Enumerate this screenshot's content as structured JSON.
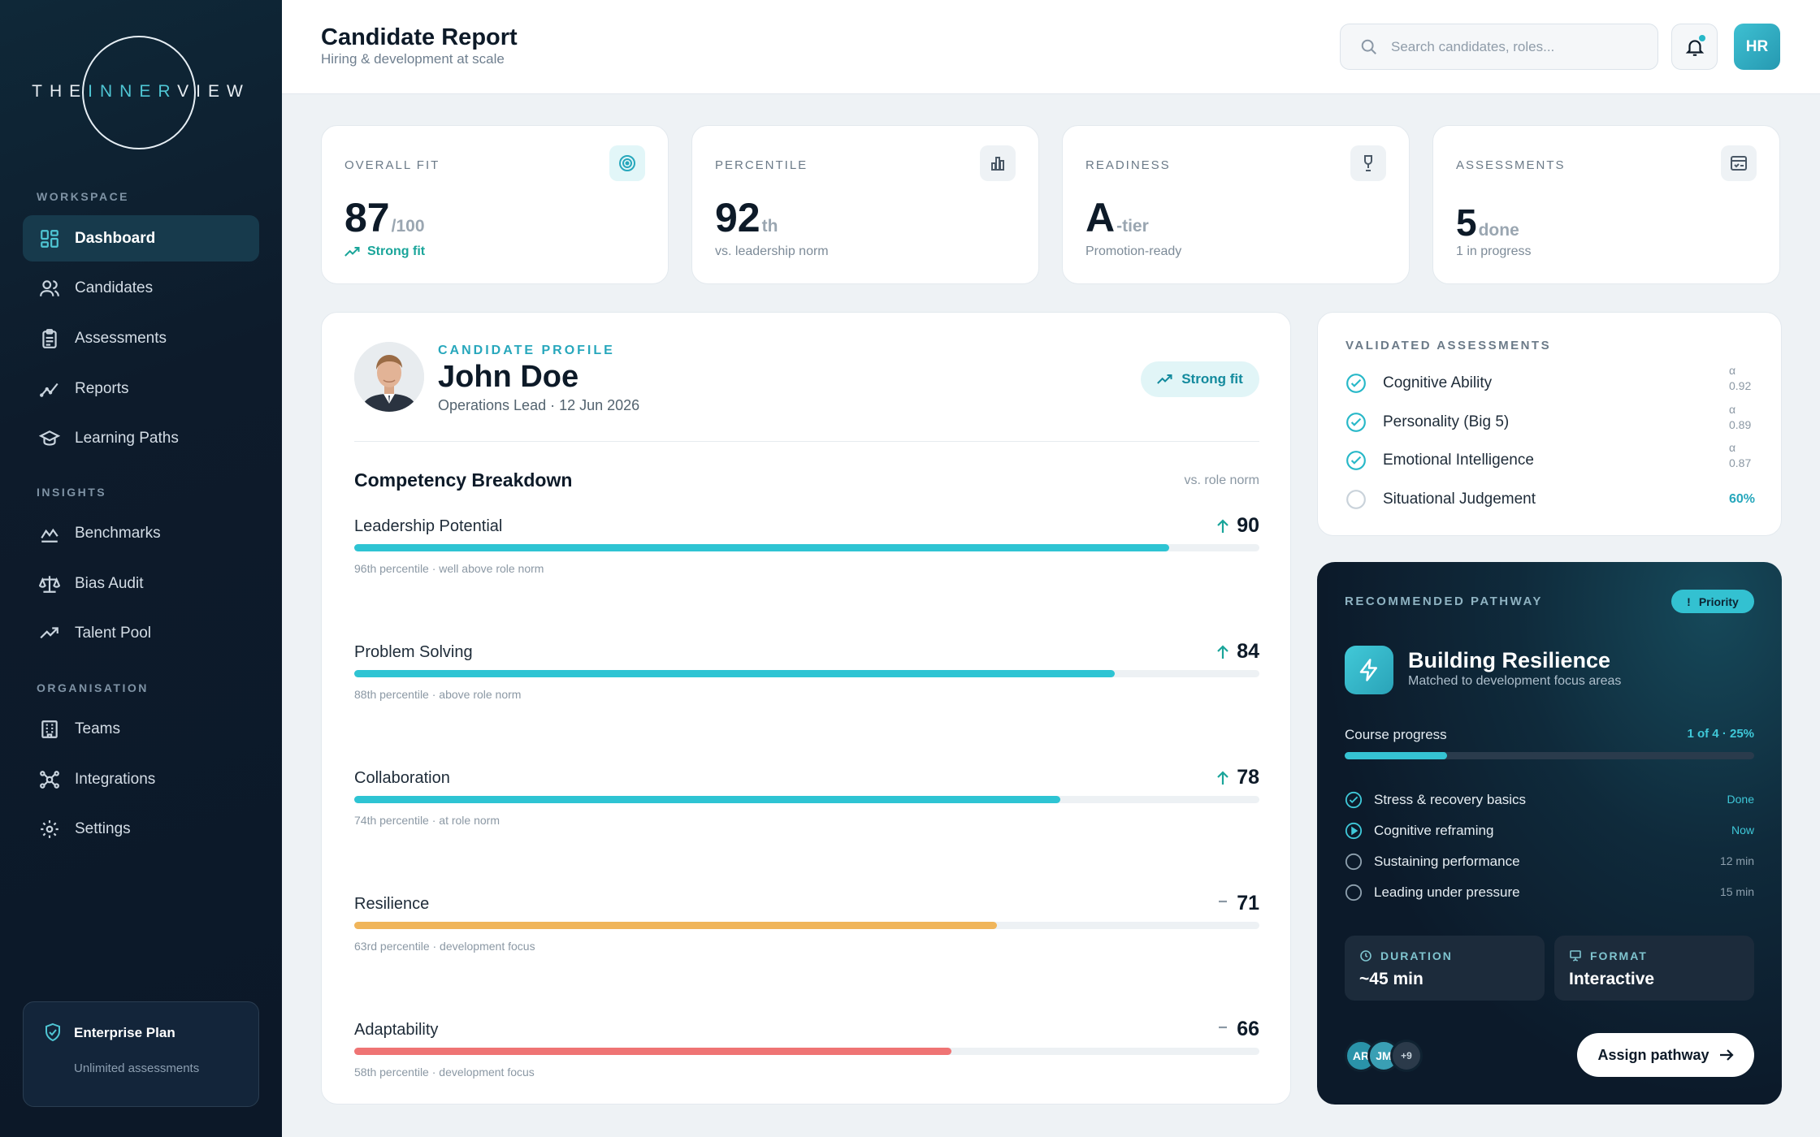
{
  "brand": {
    "logo_left": "THE",
    "logo_mid": "INNER",
    "logo_right": "VIEW"
  },
  "sidebar": {
    "sections": [
      "WORKSPACE",
      "INSIGHTS",
      "ORGANISATION"
    ],
    "items": [
      {
        "label": "Dashboard",
        "icon": "grid-icon",
        "active": true
      },
      {
        "label": "Candidates",
        "icon": "users-icon"
      },
      {
        "label": "Assessments",
        "icon": "clipboard-icon"
      },
      {
        "label": "Reports",
        "icon": "trend-icon"
      },
      {
        "label": "Learning Paths",
        "icon": "graduation-cap-icon"
      },
      {
        "label": "Benchmarks",
        "icon": "benchmark-icon"
      },
      {
        "label": "Bias Audit",
        "icon": "scale-icon"
      },
      {
        "label": "Talent Pool",
        "icon": "trending-up-icon"
      },
      {
        "label": "Teams",
        "icon": "building-icon"
      },
      {
        "label": "Integrations",
        "icon": "network-icon"
      },
      {
        "label": "Settings",
        "icon": "gear-icon"
      }
    ],
    "plan": {
      "title": "Enterprise Plan",
      "subtitle": "Unlimited assessments"
    }
  },
  "header": {
    "title": "Candidate Report",
    "subtitle": "Hiring & development at scale",
    "search_placeholder": "Search candidates, roles...",
    "avatar": "HR"
  },
  "stats": [
    {
      "label": "OVERALL FIT",
      "value": "87",
      "suffix": "/100",
      "footer": "Strong fit",
      "icon": "target-icon"
    },
    {
      "label": "PERCENTILE",
      "value": "92",
      "suffix": "th",
      "footer": "vs. leadership norm",
      "icon": "bar-chart-icon"
    },
    {
      "label": "READINESS",
      "value": "A",
      "suffix": "-tier",
      "footer": "Promotion-ready",
      "icon": "trophy-icon"
    },
    {
      "label": "ASSESSMENTS",
      "value": "5",
      "suffix": "done",
      "footer": "1 in progress",
      "icon": "checklist-icon"
    }
  ],
  "profile": {
    "tag": "CANDIDATE PROFILE",
    "name": "John Doe",
    "meta": "Operations Lead · 12 Jun 2026",
    "fit_badge": "Strong fit",
    "breakdown_title": "Competency Breakdown",
    "breakdown_norm": "vs. role norm",
    "competencies": [
      {
        "name": "Leadership Potential",
        "score": "90",
        "value": 90,
        "trend": "up",
        "color": "#2ec4d3",
        "note": "96th percentile · well above role norm"
      },
      {
        "name": "Problem Solving",
        "score": "84",
        "value": 84,
        "trend": "up",
        "color": "#2ec4d3",
        "note": "88th percentile · above role norm"
      },
      {
        "name": "Collaboration",
        "score": "78",
        "value": 78,
        "trend": "up",
        "color": "#2ec4d3",
        "note": "74th percentile · at role norm"
      },
      {
        "name": "Resilience",
        "score": "71",
        "value": 71,
        "trend": "flat",
        "color": "#f0b55a",
        "note": "63rd percentile · development focus"
      },
      {
        "name": "Adaptability",
        "score": "66",
        "value": 66,
        "trend": "flat",
        "color": "#ef7474",
        "note": "58th percentile · development focus"
      }
    ]
  },
  "validated": {
    "title": "VALIDATED ASSESSMENTS",
    "items": [
      {
        "name": "Cognitive Ability",
        "alpha_symbol": "α",
        "alpha": "0.92",
        "done": true
      },
      {
        "name": "Personality (Big 5)",
        "alpha_symbol": "α",
        "alpha": "0.89",
        "done": true
      },
      {
        "name": "Emotional Intelligence",
        "alpha_symbol": "α",
        "alpha": "0.87",
        "done": true
      },
      {
        "name": "Situational Judgement",
        "progress": "60%",
        "done": false
      }
    ]
  },
  "pathway": {
    "title": "RECOMMENDED PATHWAY",
    "priority": "Priority",
    "name": "Building Resilience",
    "subtitle": "Matched to development focus areas",
    "progress_label": "Course progress",
    "progress_value": "1 of 4 · 25%",
    "progress_fraction": 0.25,
    "steps": [
      {
        "name": "Stress & recovery basics",
        "status": "Done",
        "state": "done"
      },
      {
        "name": "Cognitive reframing",
        "status": "Now",
        "state": "now"
      },
      {
        "name": "Sustaining performance",
        "status": "12 min",
        "state": "todo"
      },
      {
        "name": "Leading under pressure",
        "status": "15 min",
        "state": "todo"
      }
    ],
    "duration_label": "DURATION",
    "duration_value": "~45 min",
    "format_label": "FORMAT",
    "format_value": "Interactive",
    "avatars": [
      "AR",
      "JM",
      "+9"
    ],
    "assign_label": "Assign pathway"
  }
}
